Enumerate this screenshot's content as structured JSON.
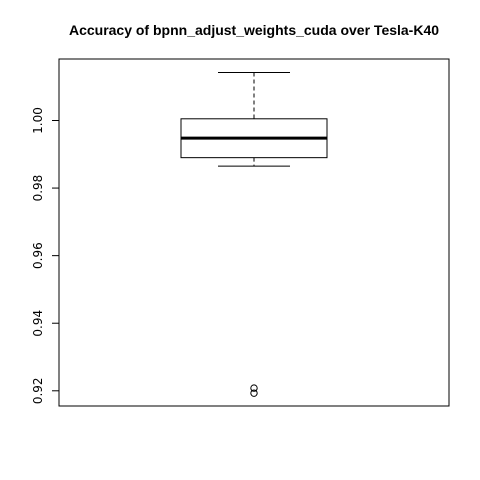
{
  "chart_data": {
    "type": "box",
    "title": "Accuracy of bpnn_adjust_weights_cuda over Tesla-K40",
    "xlabel": "",
    "ylabel": "",
    "ylim": [
      0.9155,
      1.0182
    ],
    "yticks": [
      0.92,
      0.94,
      0.96,
      0.98,
      1.0
    ],
    "ytick_labels": [
      "0.92",
      "0.94",
      "0.96",
      "0.98",
      "1.00"
    ],
    "box": {
      "whisker_low": 0.9865,
      "q1": 0.989,
      "median": 0.9948,
      "q3": 1.0005,
      "whisker_high": 1.0142,
      "outliers": [
        0.9208,
        0.9193
      ]
    },
    "grid": false
  }
}
